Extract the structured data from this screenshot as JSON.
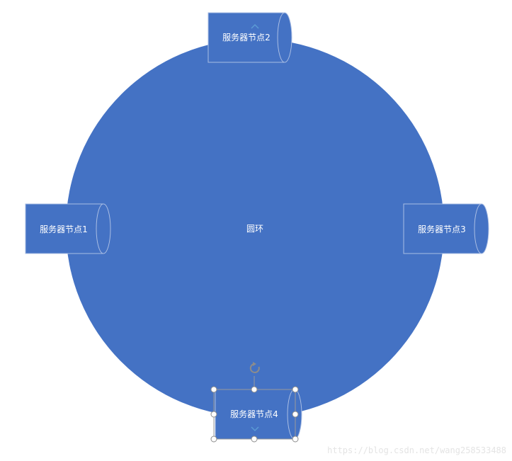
{
  "diagram": {
    "ring_label": "圆环",
    "nodes": [
      {
        "label": "服务器节点1"
      },
      {
        "label": "服务器节点2"
      },
      {
        "label": "服务器节点3"
      },
      {
        "label": "服务器节点4"
      }
    ]
  },
  "colors": {
    "shape_fill": "#4472C4",
    "shape_outline": "#A9BDE3",
    "selection": "#9A9A9A"
  },
  "watermark": "https://blog.csdn.net/wang258533488"
}
